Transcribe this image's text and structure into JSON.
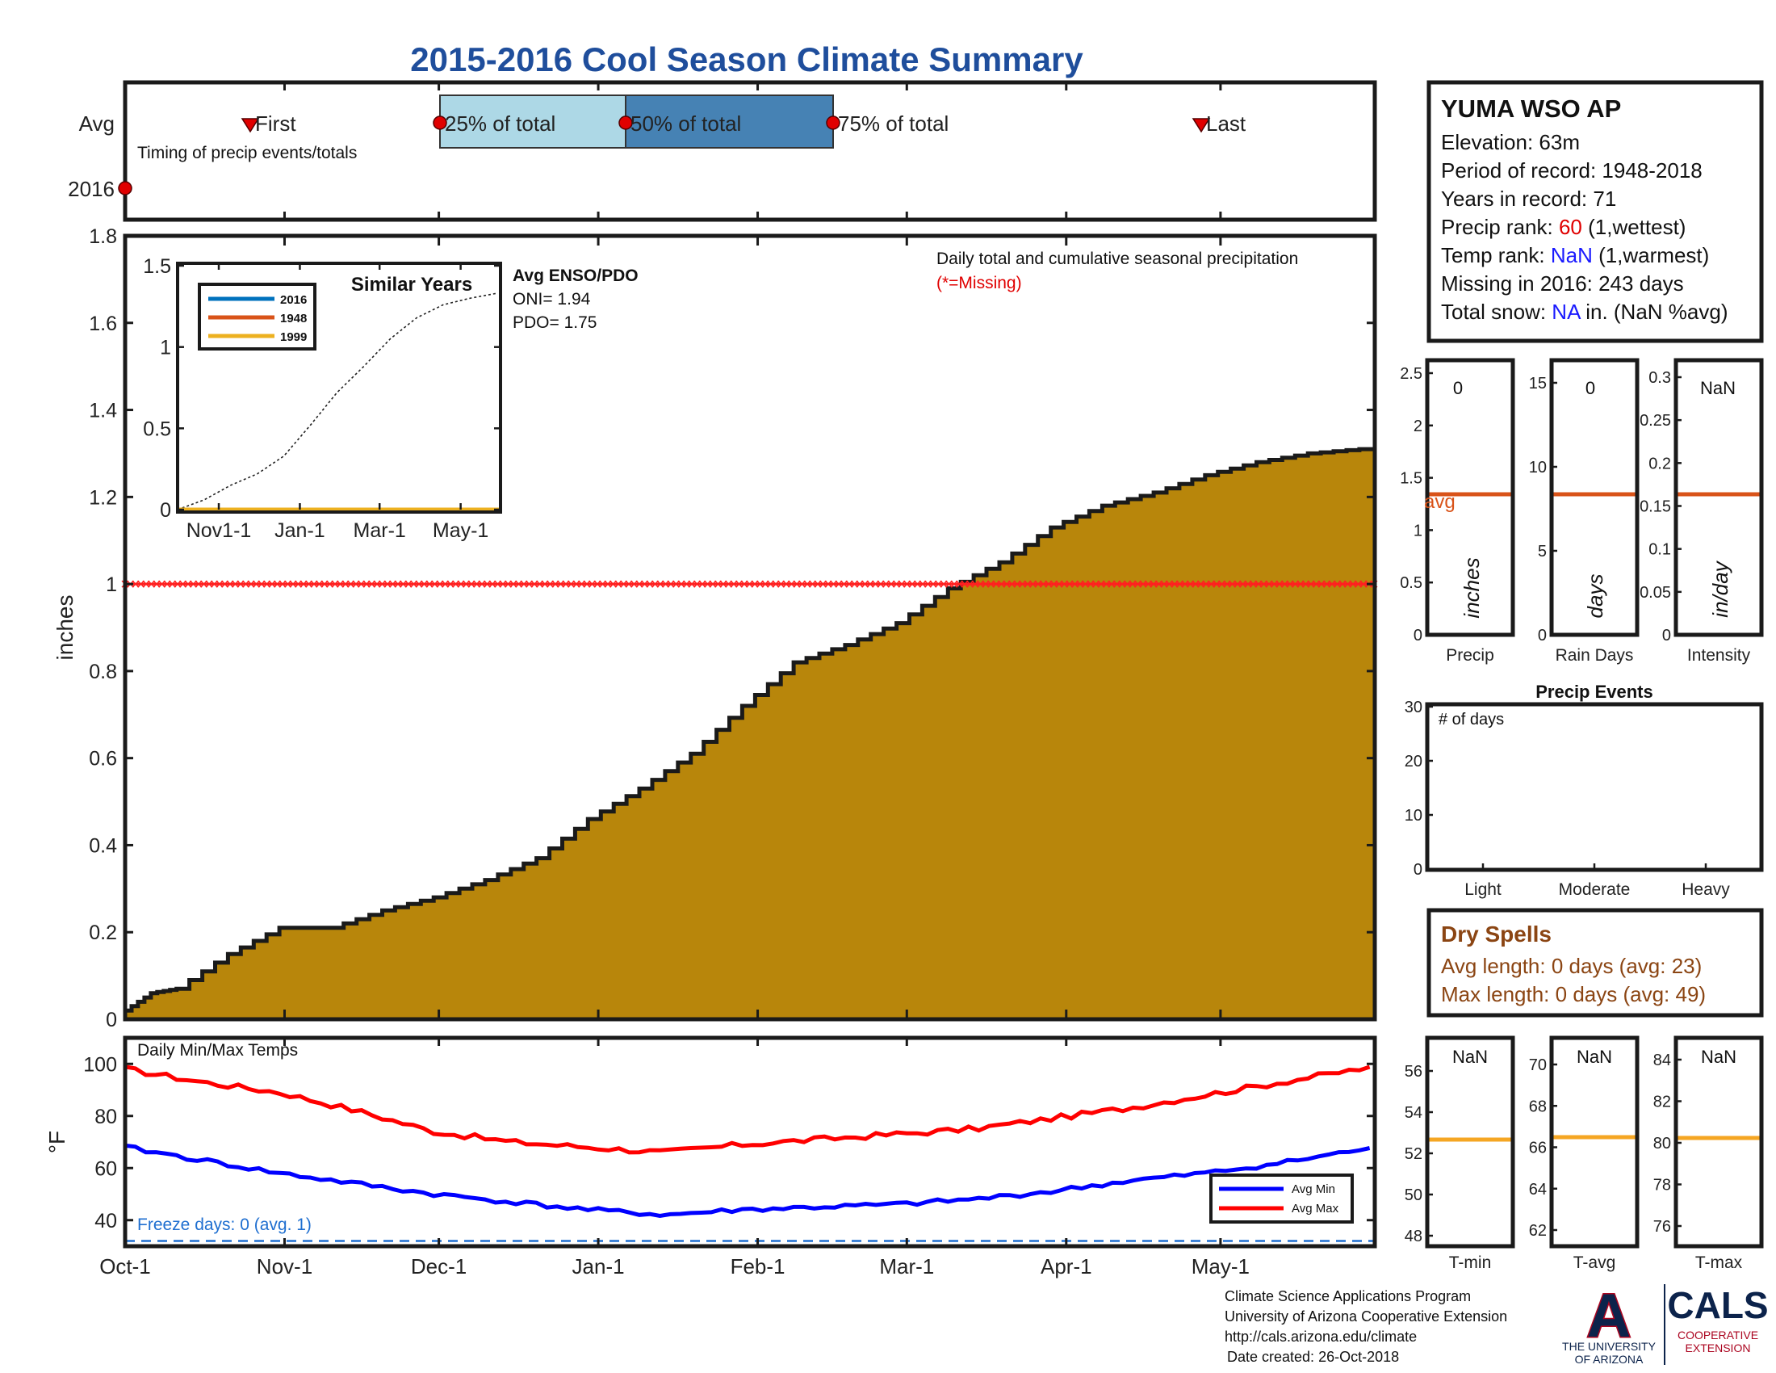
{
  "title": "2015-2016 Cool Season Climate Summary",
  "timing_panel": {
    "row_labels": [
      "Avg",
      "2016"
    ],
    "caption": "Timing of precip events/totals",
    "markers": {
      "first": "First",
      "q25": "25% of total",
      "q50": "50% of total",
      "q75": "75% of total",
      "last": "Last"
    }
  },
  "main_panel": {
    "ylabel": "inches",
    "caption": "Daily total and cumulative seasonal precipitation",
    "missing_note": "(*=Missing)",
    "enso": {
      "heading": "Avg ENSO/PDO",
      "oni": "ONI= 1.94",
      "pdo": "PDO= 1.75"
    },
    "inset": {
      "title": "Similar Years",
      "legend": [
        "2016",
        "1948",
        "1999"
      ],
      "xticks": [
        "Nov1-1",
        "Jan-1",
        "Mar-1",
        "May-1"
      ],
      "yticks": [
        "0",
        "0.5",
        "1",
        "1.5"
      ]
    }
  },
  "temp_panel": {
    "caption": "Daily Min/Max Temps",
    "ylabel": "°F",
    "freeze": "Freeze days: 0 (avg. 1)",
    "legend": [
      "Avg Min",
      "Avg Max"
    ]
  },
  "station": {
    "name": "YUMA WSO AP",
    "elevation": "Elevation: 63m",
    "period": "Period of record: 1948-2018",
    "years": "Years in record: 71",
    "precip_rank_label": "Precip rank: ",
    "precip_rank_value": "60",
    "precip_rank_suffix": " (1,wettest)",
    "temp_rank_label": "Temp rank: ",
    "temp_rank_value": "NaN",
    "temp_rank_suffix": " (1,warmest)",
    "missing": "Missing in 2016: 243 days",
    "snow_label": "Total snow: ",
    "snow_value": "NA",
    "snow_suffix": " in. (NaN %avg)"
  },
  "mini_precip": {
    "precip": {
      "value": "0",
      "ylabel": "inches",
      "xlabel": "Precip",
      "avg_label": "avg",
      "yticks": [
        "0",
        "0.5",
        "1",
        "1.5",
        "2",
        "2.5"
      ]
    },
    "rain_days": {
      "value": "0",
      "ylabel": "days",
      "xlabel": "Rain Days",
      "yticks": [
        "0",
        "5",
        "10",
        "15"
      ]
    },
    "intensity": {
      "value": "NaN",
      "ylabel": "in/day",
      "xlabel": "Intensity",
      "yticks": [
        "0",
        "0.05",
        "0.1",
        "0.15",
        "0.2",
        "0.25",
        "0.3"
      ]
    }
  },
  "precip_events": {
    "title": "Precip Events",
    "inner": "# of days",
    "yticks": [
      "0",
      "10",
      "20",
      "30"
    ],
    "categories": [
      "Light",
      "Moderate",
      "Heavy"
    ]
  },
  "dry_spells": {
    "title": "Dry Spells",
    "avg_length": "Avg length: 0 days (avg: 23)",
    "max_length": "Max length: 0 days (avg: 49)"
  },
  "mini_temps": {
    "tmin": {
      "value": "NaN",
      "xlabel": "T-min",
      "yticks": [
        "48",
        "50",
        "52",
        "54",
        "56"
      ]
    },
    "tavg": {
      "value": "NaN",
      "xlabel": "T-avg",
      "yticks": [
        "62",
        "64",
        "66",
        "68",
        "70"
      ]
    },
    "tmax": {
      "value": "NaN",
      "xlabel": "T-max",
      "yticks": [
        "76",
        "78",
        "80",
        "82",
        "84"
      ]
    }
  },
  "footer": {
    "line1": "Climate Science Applications Program",
    "line2": "University of Arizona Cooperative Extension",
    "line3": "http://cals.arizona.edu/climate",
    "line4": "Date created: 26-Oct-2018",
    "ua_logo_letter": "A",
    "ua_line1": "THE UNIVERSITY",
    "ua_line2": "OF ARIZONA",
    "cals": "CALS",
    "cals_line1": "COOPERATIVE",
    "cals_line2": "EXTENSION"
  },
  "colors": {
    "title": "#1f4e9c",
    "fill": "#b8860b",
    "avg_line": "#d95319",
    "min": "#0000ff",
    "max": "#ff0000",
    "q_light": "#add8e6",
    "q_dark": "#4682b4",
    "dry": "#8b4513",
    "freeze": "#1f6fd0",
    "orange": "#f5a623"
  },
  "chart_data": [
    {
      "type": "area",
      "title": "Daily total and cumulative seasonal precipitation",
      "xlabel": "",
      "ylabel": "inches",
      "xticks": [
        "Oct-1",
        "Nov-1",
        "Dec-1",
        "Jan-1",
        "Feb-1",
        "Mar-1",
        "Apr-1",
        "May-1"
      ],
      "ylim": [
        0,
        1.8
      ],
      "yticks": [
        0,
        0.2,
        0.4,
        0.6,
        0.8,
        1,
        1.2,
        1.4,
        1.6,
        1.8
      ],
      "series": [
        {
          "x": [
            0,
            5,
            10,
            20,
            30,
            40,
            50,
            60,
            70,
            80,
            90,
            100,
            110,
            120,
            130,
            140,
            150,
            160,
            170,
            180,
            190,
            200,
            210,
            220,
            230,
            240
          ],
          "values": [
            0.02,
            0.06,
            0.07,
            0.15,
            0.21,
            0.21,
            0.25,
            0.28,
            0.32,
            0.37,
            0.46,
            0.53,
            0.61,
            0.72,
            0.82,
            0.86,
            0.91,
            0.99,
            1.05,
            1.13,
            1.18,
            1.21,
            1.25,
            1.28,
            1.3,
            1.31
          ]
        }
      ],
      "missing_line": 1.0
    },
    {
      "type": "line",
      "title": "Daily Min/Max Temps",
      "ylabel": "°F",
      "ylim": [
        30,
        110
      ],
      "yticks": [
        40,
        60,
        80,
        100
      ],
      "series": [
        {
          "name": "Avg Max",
          "x": [
            0,
            15,
            30,
            45,
            60,
            75,
            90,
            105,
            120,
            135,
            150,
            165,
            180,
            195,
            210,
            225,
            240
          ],
          "values": [
            98,
            93,
            89,
            82,
            74,
            70,
            68,
            66,
            69,
            71,
            73,
            75,
            79,
            83,
            88,
            93,
            98
          ]
        },
        {
          "name": "Avg Min",
          "x": [
            0,
            15,
            30,
            45,
            60,
            75,
            90,
            105,
            120,
            135,
            150,
            165,
            180,
            195,
            210,
            225,
            240
          ],
          "values": [
            68,
            63,
            58,
            54,
            50,
            47,
            44,
            42,
            44,
            45,
            46,
            48,
            51,
            55,
            58,
            62,
            67
          ]
        }
      ],
      "freeze_line": 32
    },
    {
      "type": "line",
      "title": "Similar Years",
      "xticks": [
        "Nov1-1",
        "Jan-1",
        "Mar-1",
        "May-1"
      ],
      "ylim": [
        0,
        1.5
      ],
      "series": [
        {
          "name": "2016",
          "values": [
            0,
            0
          ]
        },
        {
          "name": "1948",
          "values": [
            0,
            0
          ]
        },
        {
          "name": "1999",
          "values": [
            0,
            0
          ]
        },
        {
          "x": [
            0,
            20,
            40,
            60,
            80,
            100,
            120,
            140,
            160,
            180,
            200,
            220,
            240
          ],
          "values": [
            0,
            0.06,
            0.15,
            0.22,
            0.33,
            0.52,
            0.72,
            0.88,
            1.05,
            1.18,
            1.26,
            1.3,
            1.33
          ]
        }
      ]
    },
    {
      "type": "bar",
      "title": "Precip Events",
      "categories": [
        "Light",
        "Moderate",
        "Heavy"
      ],
      "values": [
        0,
        0,
        0
      ],
      "ylim": [
        0,
        30
      ]
    }
  ]
}
